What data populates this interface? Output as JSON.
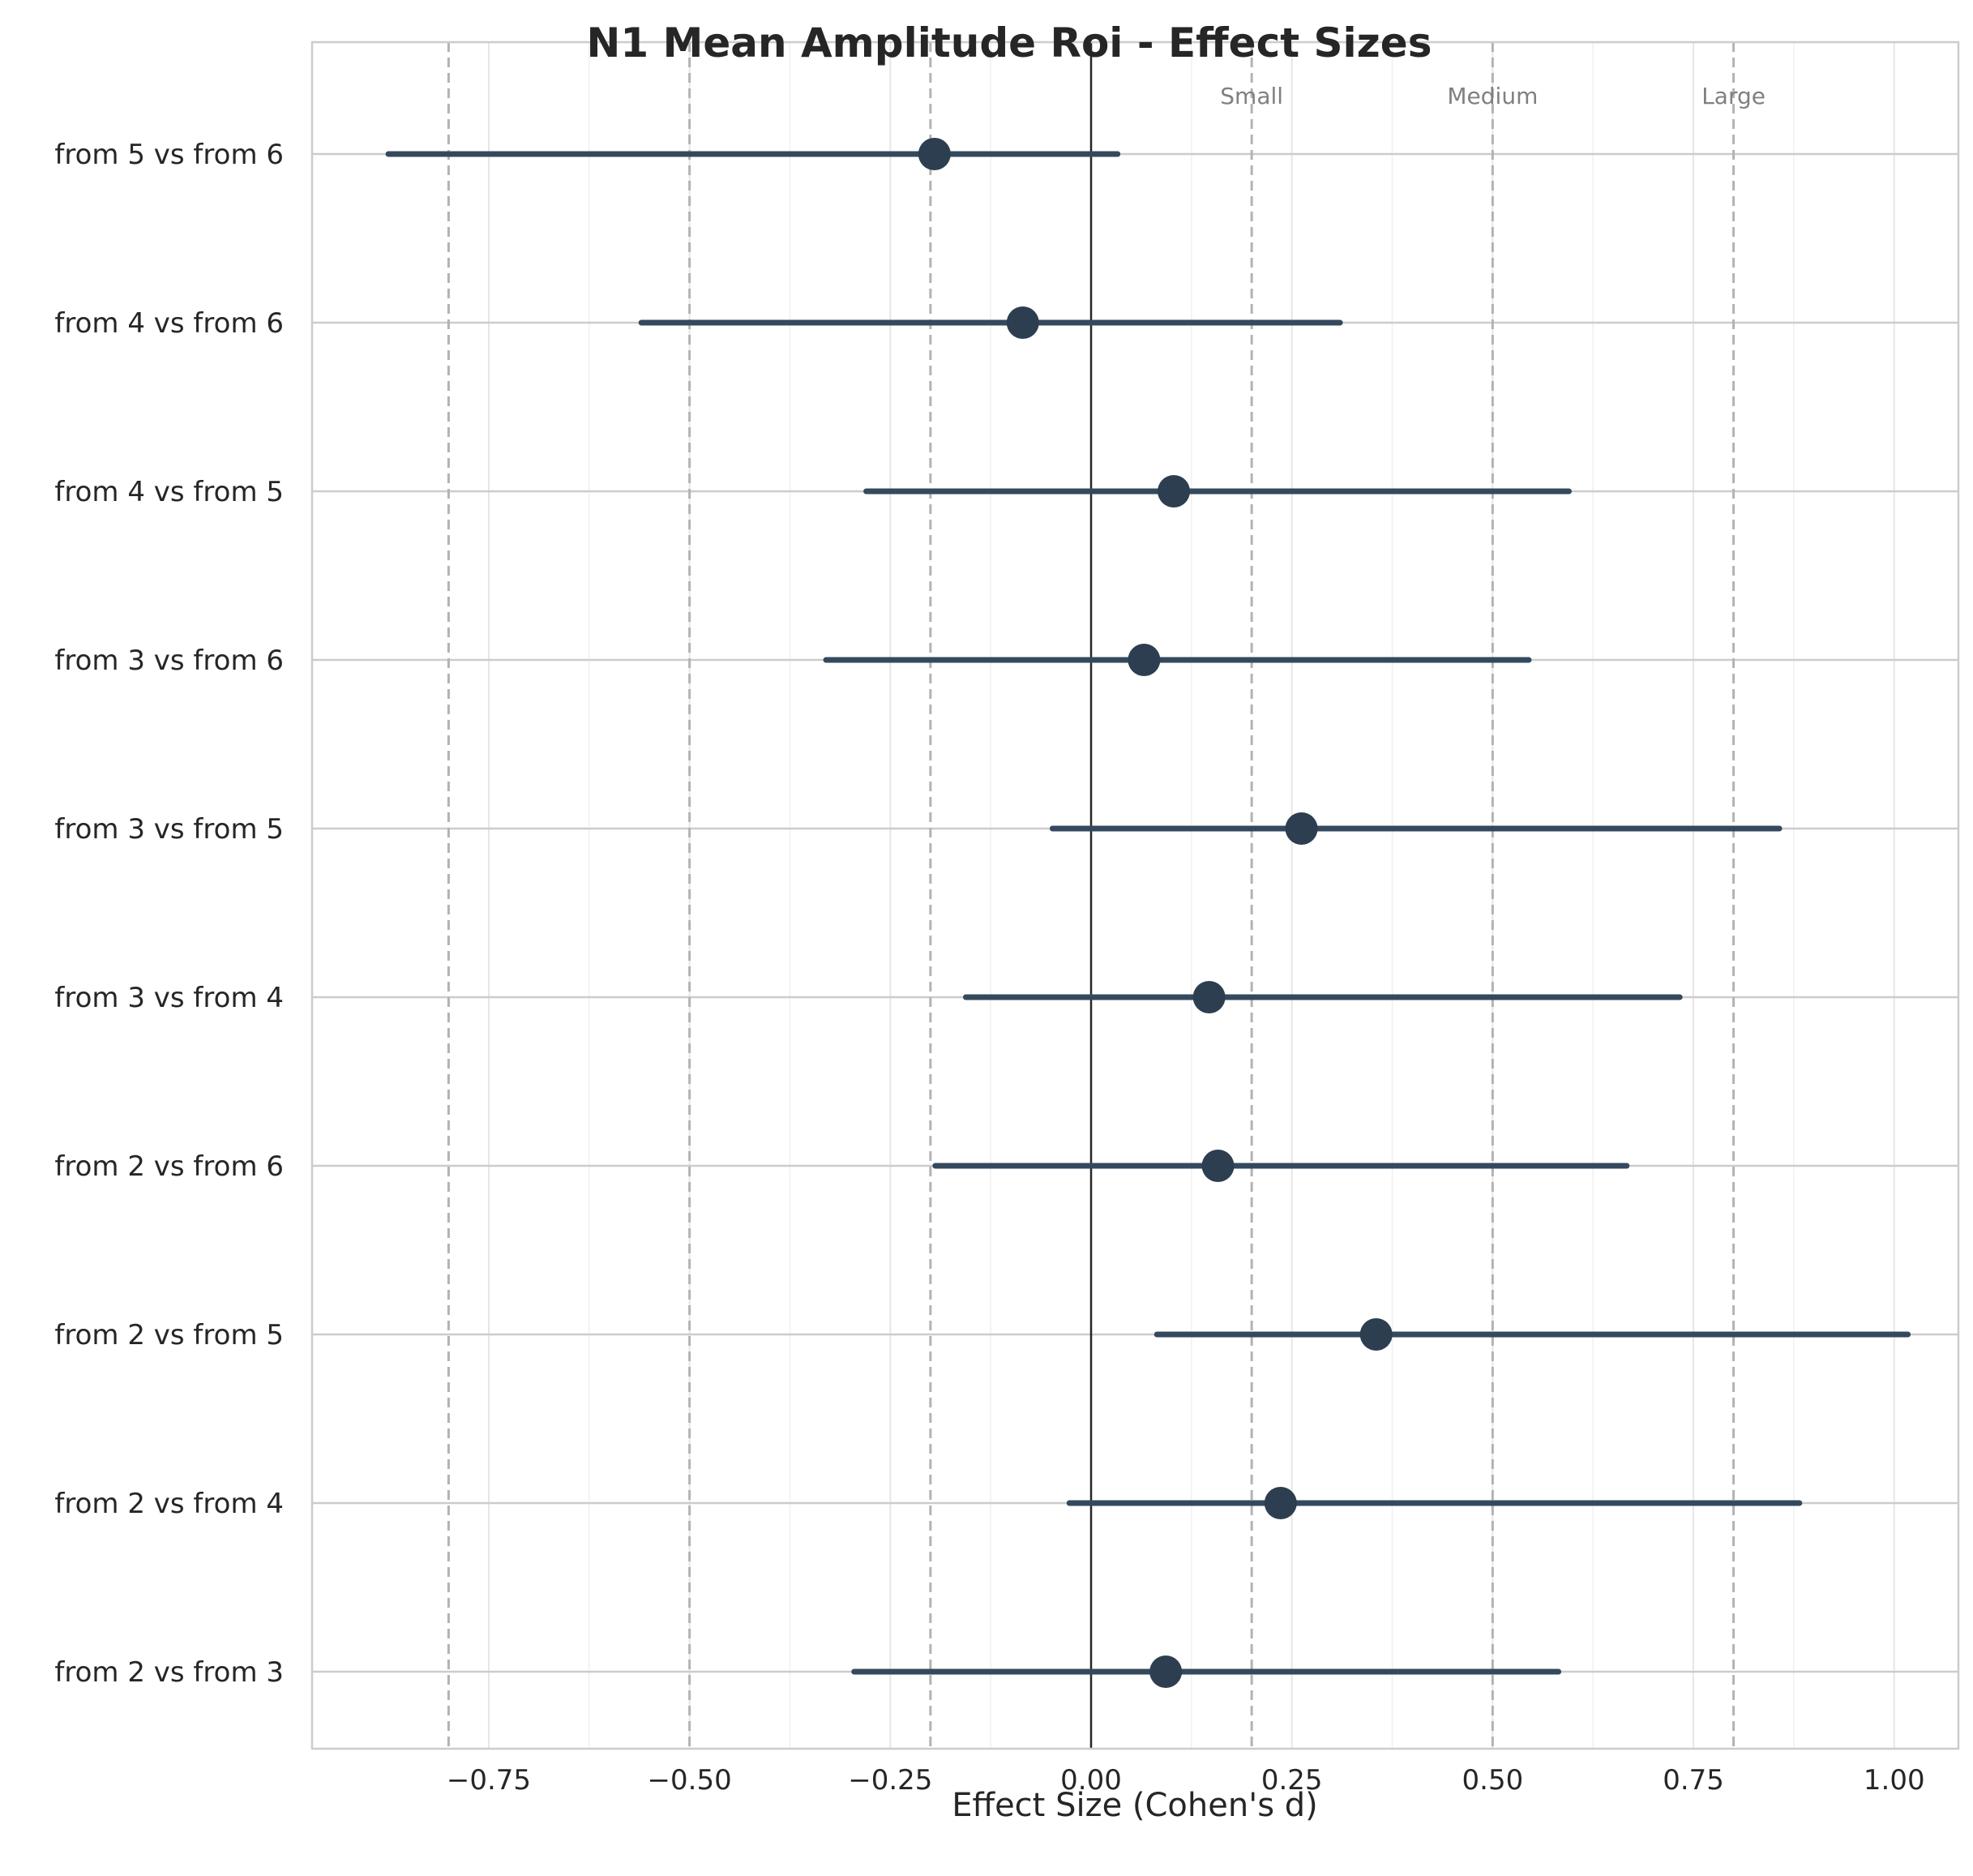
{
  "chart_data": {
    "type": "forest",
    "title": "N1 Mean Amplitude Roi - Effect Sizes",
    "xlabel": "Effect Size (Cohen's d)",
    "ylabel": "",
    "xlim": [
      -0.97,
      1.08
    ],
    "xticks": [
      -0.75,
      -0.5,
      -0.25,
      0.0,
      0.25,
      0.5,
      0.75,
      1.0
    ],
    "xtick_labels": [
      "−0.75",
      "−0.50",
      "−0.25",
      "0.00",
      "0.25",
      "0.50",
      "0.75",
      "1.00"
    ],
    "grid": true,
    "point_color": "#2c3e50",
    "line_color": "#34495e",
    "zero_line": 0,
    "reference_lines": [
      {
        "value": -0.8,
        "label": ""
      },
      {
        "value": -0.5,
        "label": ""
      },
      {
        "value": -0.2,
        "label": ""
      },
      {
        "value": 0.2,
        "label": "Small"
      },
      {
        "value": 0.5,
        "label": "Medium"
      },
      {
        "value": 0.8,
        "label": "Large"
      }
    ],
    "comparisons": [
      {
        "label": "from 5 vs from 6",
        "d": -0.195,
        "ci_low": -0.875,
        "ci_high": 0.033
      },
      {
        "label": "from 4 vs from 6",
        "d": -0.085,
        "ci_low": -0.56,
        "ci_high": 0.31
      },
      {
        "label": "from 4 vs from 5",
        "d": 0.103,
        "ci_low": -0.28,
        "ci_high": 0.595
      },
      {
        "label": "from 3 vs from 6",
        "d": 0.066,
        "ci_low": -0.33,
        "ci_high": 0.545
      },
      {
        "label": "from 3 vs from 5",
        "d": 0.262,
        "ci_low": -0.048,
        "ci_high": 0.857
      },
      {
        "label": "from 3 vs from 4",
        "d": 0.147,
        "ci_low": -0.156,
        "ci_high": 0.733
      },
      {
        "label": "from 2 vs from 6",
        "d": 0.158,
        "ci_low": -0.194,
        "ci_high": 0.667
      },
      {
        "label": "from 2 vs from 5",
        "d": 0.355,
        "ci_low": 0.082,
        "ci_high": 1.017
      },
      {
        "label": "from 2 vs from 4",
        "d": 0.236,
        "ci_low": -0.027,
        "ci_high": 0.882
      },
      {
        "label": "from 2 vs from 3",
        "d": 0.093,
        "ci_low": -0.295,
        "ci_high": 0.582
      }
    ]
  }
}
